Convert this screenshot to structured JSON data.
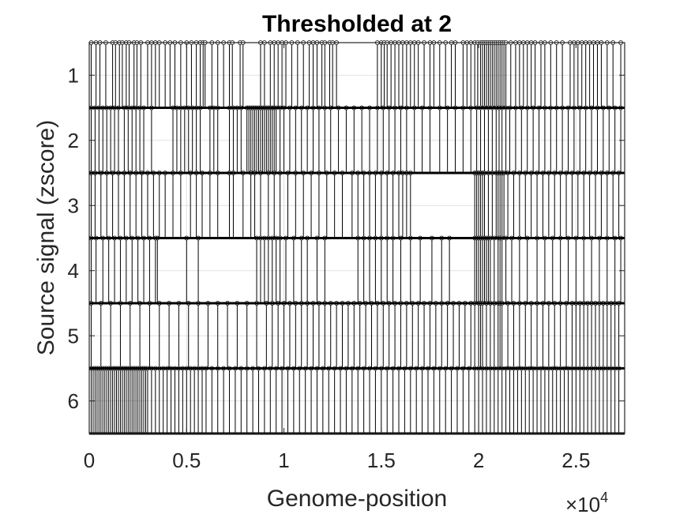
{
  "chart_data": {
    "type": "stem",
    "title": "Thresholded at 2",
    "xlabel": "Genome-position",
    "ylabel": "Source signal (zscore)",
    "x_multiplier": {
      "base": "×10",
      "exponent": "4"
    },
    "xlim": [
      0,
      27500
    ],
    "x_ticks": [
      {
        "value": 0,
        "label": "0"
      },
      {
        "value": 5000,
        "label": "0.5"
      },
      {
        "value": 10000,
        "label": "1"
      },
      {
        "value": 15000,
        "label": "1.5"
      },
      {
        "value": 20000,
        "label": "2"
      },
      {
        "value": 25000,
        "label": "2.5"
      }
    ],
    "y_categories": [
      "1",
      "2",
      "3",
      "4",
      "5",
      "6"
    ],
    "grid": true,
    "line_color": "#000000",
    "series": [
      {
        "label": "1",
        "x": [
          100,
          350,
          550,
          850,
          1200,
          1350,
          1550,
          1700,
          1900,
          2050,
          2300,
          2450,
          2650,
          3000,
          3200,
          3400,
          3600,
          3900,
          4150,
          4400,
          4700,
          5000,
          5250,
          5500,
          5700,
          5850,
          5950,
          6300,
          6600,
          6900,
          7200,
          7350,
          7750,
          7900,
          8800,
          9000,
          9300,
          9500,
          9700,
          9900,
          10100,
          10400,
          10700,
          11000,
          11300,
          11500,
          11700,
          11950,
          12100,
          12350,
          12500,
          12700,
          14800,
          15000,
          15150,
          15300,
          15500,
          15700,
          15900,
          16100,
          16300,
          16500,
          16700,
          16900,
          17200,
          17500,
          17700,
          18000,
          18300,
          18600,
          18800,
          19200,
          19400,
          19600,
          19800,
          19950,
          20100,
          20200,
          20300,
          20400,
          20500,
          20600,
          20700,
          20800,
          20900,
          21000,
          21100,
          21200,
          21300,
          21400,
          21650,
          21900,
          22100,
          22300,
          22500,
          22700,
          22900,
          23200,
          23400,
          23700,
          24000,
          24300,
          24700,
          24900,
          25100,
          25300,
          25500,
          25700,
          25900,
          26100,
          26300,
          26600,
          26900,
          27300
        ]
      },
      {
        "label": "2",
        "x": [
          100,
          300,
          500,
          700,
          900,
          1100,
          1300,
          1500,
          1800,
          2000,
          2200,
          2400,
          2600,
          2800,
          3200,
          4300,
          4500,
          4700,
          4900,
          5100,
          5300,
          5500,
          5700,
          6200,
          6400,
          6600,
          7200,
          7400,
          7600,
          7800,
          8100,
          8200,
          8300,
          8400,
          8500,
          8600,
          8700,
          8800,
          8900,
          9000,
          9100,
          9200,
          9300,
          9400,
          9500,
          9600,
          9800,
          10000,
          10300,
          10600,
          10900,
          11200,
          11500,
          11800,
          12100,
          12400,
          12800,
          13200,
          13600,
          14000,
          14400,
          14800,
          15100,
          15400,
          15700,
          16000,
          16300,
          16700,
          17100,
          17500,
          18000,
          18400,
          18800,
          19200,
          19600,
          19900,
          20100,
          20300,
          20500,
          20700,
          20900,
          21050,
          21200,
          21400,
          21600,
          21900,
          22200,
          22500,
          22800,
          23100,
          23400,
          23700,
          24000,
          24300,
          24600,
          24900,
          25200,
          25500,
          25800,
          26100,
          26400,
          26700,
          27000,
          27300
        ]
      },
      {
        "label": "3",
        "x": [
          100,
          300,
          600,
          900,
          1200,
          1500,
          1800,
          2100,
          2400,
          2700,
          3000,
          3300,
          3600,
          3900,
          4300,
          4700,
          5200,
          5500,
          5800,
          6200,
          6600,
          7200,
          7400,
          7900,
          8300,
          8500,
          8800,
          9200,
          9500,
          9800,
          10200,
          10600,
          11000,
          11400,
          11800,
          12200,
          12600,
          13000,
          13500,
          13800,
          14100,
          14400,
          14700,
          15000,
          15300,
          15600,
          15900,
          16100,
          16300,
          16500,
          19800,
          19900,
          20000,
          20100,
          20200,
          20300,
          20500,
          20700,
          20900,
          21000,
          21100,
          21200,
          21300,
          21500,
          21800,
          22100,
          22400,
          22700,
          23000,
          23300,
          23600,
          23900,
          24200,
          24500,
          24800,
          25100,
          25400,
          25700,
          26000,
          26300,
          26600,
          26900,
          27200
        ]
      },
      {
        "label": "4",
        "x": [
          100,
          350,
          700,
          1000,
          1300,
          1600,
          1900,
          2200,
          2500,
          2800,
          3100,
          3500,
          3400,
          5000,
          5600,
          8600,
          8800,
          9000,
          9200,
          9400,
          9600,
          9800,
          10100,
          10500,
          10900,
          11200,
          11700,
          12100,
          13800,
          14100,
          14400,
          14700,
          15000,
          15300,
          15600,
          16000,
          16500,
          17000,
          17600,
          18100,
          18500,
          19800,
          19900,
          20000,
          20100,
          20200,
          20300,
          20400,
          20500,
          20600,
          20800,
          21000,
          21100,
          21200,
          21400,
          21700,
          22100,
          22500,
          23000,
          23400,
          23800,
          24200,
          24600,
          25000,
          25400,
          25800,
          26200,
          26600,
          27000,
          27300
        ]
      },
      {
        "label": "5",
        "x": [
          100,
          600,
          1100,
          1600,
          2100,
          2600,
          3100,
          3600,
          4100,
          4600,
          5100,
          5600,
          6100,
          6600,
          7100,
          7600,
          8100,
          8600,
          9100,
          9400,
          9700,
          10000,
          10300,
          10600,
          10900,
          11200,
          11500,
          11800,
          12100,
          12400,
          12700,
          13000,
          13300,
          13600,
          13900,
          14200,
          14500,
          14800,
          15100,
          15400,
          15700,
          16000,
          16300,
          16600,
          16900,
          17200,
          17500,
          17800,
          18100,
          18400,
          18700,
          19000,
          19300,
          19600,
          19800,
          20000,
          20100,
          20200,
          20400,
          20600,
          20800,
          21000,
          21100,
          21200,
          21500,
          21800,
          22100,
          22400,
          22700,
          23000,
          23300,
          23600,
          23900,
          24200,
          24500,
          24800,
          25000,
          25200,
          25400,
          25600,
          25800,
          26000,
          26200,
          26400,
          26600,
          26800,
          27000,
          27200
        ]
      },
      {
        "label": "6",
        "x": [
          100,
          200,
          300,
          400,
          500,
          600,
          700,
          800,
          900,
          1000,
          1100,
          1200,
          1300,
          1400,
          1500,
          1600,
          1700,
          1800,
          1900,
          2000,
          2100,
          2200,
          2300,
          2400,
          2500,
          2600,
          2700,
          2800,
          2900,
          3000,
          3200,
          3400,
          3600,
          3800,
          4000,
          4200,
          4400,
          4600,
          4800,
          5000,
          5200,
          5400,
          5600,
          5800,
          6000,
          6300,
          6600,
          6900,
          7200,
          7500,
          7800,
          8100,
          8400,
          8700,
          9000,
          9300,
          9600,
          9900,
          10200,
          10500,
          10800,
          11100,
          11400,
          11700,
          12000,
          12300,
          12600,
          12900,
          13200,
          13500,
          13800,
          14100,
          14400,
          14700,
          15000,
          15300,
          15600,
          15900,
          16200,
          16500,
          16800,
          17100,
          17400,
          17700,
          18000,
          18300,
          18600,
          18900,
          19200,
          19500,
          19800,
          20000,
          20200,
          20400,
          20600,
          20800,
          21000,
          21200,
          21400,
          21600,
          21800,
          22000,
          22200,
          22400,
          22600,
          22800,
          23000,
          23200,
          23400,
          23600,
          23800,
          24000,
          24200,
          24400,
          24600,
          24800,
          25000,
          25200,
          25400,
          25600,
          25800,
          26000,
          26200,
          26400,
          26600,
          26800,
          27000,
          27200
        ]
      }
    ]
  }
}
